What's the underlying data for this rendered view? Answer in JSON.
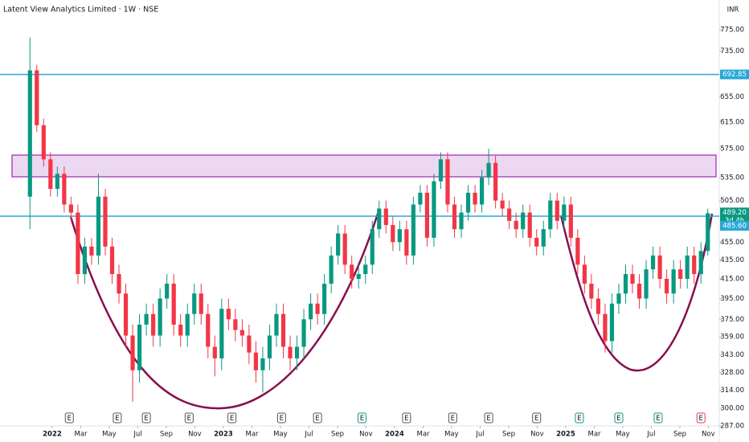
{
  "chart_data": {
    "type": "candlestick",
    "title": "Latent View Analytics Limited · 1W · NSE",
    "currency": "INR",
    "log_scale": true,
    "grid": false,
    "up_color": "#089981",
    "down_color": "#f23645",
    "x": [
      2021.87,
      2021.91,
      2021.95,
      2021.99,
      2022.03,
      2022.07,
      2022.11,
      2022.15,
      2022.19,
      2022.23,
      2022.27,
      2022.31,
      2022.35,
      2022.39,
      2022.43,
      2022.47,
      2022.51,
      2022.55,
      2022.59,
      2022.63,
      2022.67,
      2022.71,
      2022.75,
      2022.79,
      2022.83,
      2022.87,
      2022.91,
      2022.95,
      2022.99,
      2023.03,
      2023.07,
      2023.11,
      2023.15,
      2023.19,
      2023.23,
      2023.27,
      2023.31,
      2023.35,
      2023.39,
      2023.43,
      2023.47,
      2023.51,
      2023.55,
      2023.59,
      2023.63,
      2023.67,
      2023.71,
      2023.75,
      2023.79,
      2023.83,
      2023.87,
      2023.91,
      2023.95,
      2023.99,
      2024.03,
      2024.07,
      2024.11,
      2024.15,
      2024.19,
      2024.23,
      2024.27,
      2024.31,
      2024.35,
      2024.39,
      2024.43,
      2024.47,
      2024.51,
      2024.55,
      2024.59,
      2024.63,
      2024.67,
      2024.71,
      2024.75,
      2024.79,
      2024.83,
      2024.87,
      2024.91,
      2024.95,
      2024.99,
      2025.03,
      2025.07,
      2025.11,
      2025.15,
      2025.19,
      2025.23,
      2025.27,
      2025.31,
      2025.35,
      2025.39,
      2025.43,
      2025.47,
      2025.51,
      2025.55,
      2025.59,
      2025.63,
      2025.67,
      2025.71,
      2025.75,
      2025.79,
      2025.83
    ],
    "open": [
      510,
      700,
      610,
      560,
      520,
      540,
      500,
      490,
      420,
      450,
      440,
      510,
      450,
      420,
      400,
      360,
      330,
      370,
      380,
      360,
      395,
      410,
      370,
      360,
      380,
      400,
      380,
      350,
      340,
      385,
      375,
      365,
      360,
      345,
      330,
      340,
      360,
      380,
      350,
      340,
      350,
      375,
      390,
      380,
      410,
      440,
      465,
      430,
      415,
      420,
      430,
      470,
      495,
      475,
      455,
      470,
      440,
      500,
      515,
      460,
      530,
      560,
      500,
      470,
      490,
      515,
      500,
      535,
      555,
      505,
      495,
      480,
      470,
      490,
      460,
      450,
      470,
      505,
      480,
      500,
      460,
      430,
      410,
      395,
      380,
      355,
      390,
      400,
      420,
      410,
      395,
      425,
      440,
      415,
      400,
      425,
      415,
      440,
      420,
      445
    ],
    "high": [
      760,
      710,
      620,
      570,
      550,
      550,
      510,
      500,
      460,
      460,
      540,
      520,
      460,
      430,
      410,
      370,
      380,
      390,
      390,
      405,
      420,
      420,
      380,
      390,
      410,
      410,
      390,
      360,
      395,
      395,
      385,
      375,
      370,
      355,
      350,
      370,
      390,
      390,
      360,
      360,
      385,
      400,
      400,
      420,
      450,
      475,
      475,
      440,
      430,
      440,
      480,
      505,
      505,
      485,
      480,
      480,
      510,
      525,
      525,
      540,
      570,
      570,
      510,
      500,
      525,
      525,
      545,
      575,
      565,
      515,
      505,
      490,
      500,
      500,
      470,
      480,
      515,
      515,
      510,
      510,
      470,
      440,
      420,
      405,
      390,
      400,
      410,
      430,
      430,
      420,
      435,
      450,
      450,
      425,
      435,
      435,
      450,
      450,
      455,
      495
    ],
    "low": [
      470,
      600,
      550,
      510,
      510,
      490,
      480,
      410,
      410,
      430,
      430,
      440,
      410,
      390,
      350,
      305,
      320,
      360,
      350,
      350,
      385,
      360,
      350,
      350,
      370,
      370,
      340,
      325,
      330,
      365,
      355,
      350,
      335,
      320,
      312,
      330,
      350,
      340,
      330,
      330,
      340,
      365,
      370,
      370,
      400,
      430,
      420,
      405,
      405,
      410,
      420,
      460,
      465,
      445,
      445,
      430,
      430,
      490,
      450,
      450,
      520,
      490,
      460,
      460,
      480,
      490,
      490,
      525,
      495,
      485,
      470,
      460,
      460,
      450,
      440,
      440,
      460,
      470,
      470,
      450,
      420,
      400,
      385,
      370,
      345,
      345,
      380,
      390,
      400,
      385,
      385,
      415,
      405,
      390,
      390,
      405,
      405,
      410,
      410,
      440
    ],
    "close": [
      700,
      610,
      560,
      520,
      540,
      500,
      490,
      420,
      450,
      440,
      510,
      450,
      420,
      400,
      360,
      330,
      370,
      380,
      360,
      395,
      410,
      370,
      360,
      380,
      400,
      380,
      350,
      340,
      385,
      375,
      365,
      360,
      345,
      330,
      340,
      360,
      380,
      350,
      340,
      350,
      375,
      390,
      380,
      410,
      440,
      465,
      430,
      415,
      420,
      430,
      470,
      495,
      475,
      455,
      470,
      440,
      500,
      515,
      460,
      530,
      560,
      500,
      470,
      490,
      515,
      500,
      535,
      555,
      505,
      495,
      480,
      470,
      490,
      460,
      450,
      470,
      505,
      480,
      500,
      460,
      430,
      410,
      395,
      380,
      355,
      390,
      400,
      420,
      410,
      395,
      425,
      440,
      415,
      400,
      425,
      415,
      440,
      420,
      445,
      489.2
    ],
    "last_close_label": "489.20",
    "countdown": "3d 4h",
    "xlim": [
      2021.695,
      2025.897
    ],
    "ylim": [
      287,
      835
    ],
    "xticks": [
      2022,
      {
        "value": 2022.167,
        "label": "Mar"
      },
      {
        "value": 2022.333,
        "label": "May"
      },
      {
        "value": 2022.5,
        "label": "Jul"
      },
      {
        "value": 2022.667,
        "label": "Sep"
      },
      {
        "value": 2022.833,
        "label": "Nov"
      },
      2023,
      {
        "value": 2023.167,
        "label": "Mar"
      },
      {
        "value": 2023.333,
        "label": "May"
      },
      {
        "value": 2023.5,
        "label": "Jul"
      },
      {
        "value": 2023.667,
        "label": "Sep"
      },
      {
        "value": 2023.833,
        "label": "Nov"
      },
      2024,
      {
        "value": 2024.167,
        "label": "Mar"
      },
      {
        "value": 2024.333,
        "label": "May"
      },
      {
        "value": 2024.5,
        "label": "Jul"
      },
      {
        "value": 2024.667,
        "label": "Sep"
      },
      {
        "value": 2024.833,
        "label": "Nov"
      },
      2025,
      {
        "value": 2025.167,
        "label": "Mar"
      },
      {
        "value": 2025.333,
        "label": "May"
      },
      {
        "value": 2025.5,
        "label": "Jul"
      },
      {
        "value": 2025.667,
        "label": "Sep"
      },
      {
        "value": 2025.833,
        "label": "Nov"
      }
    ],
    "yticks": [
      {
        "value": 775,
        "label": "775.00"
      },
      {
        "value": 735,
        "label": "735.00"
      },
      {
        "value": 655,
        "label": "655.00"
      },
      {
        "value": 615,
        "label": "615.00"
      },
      {
        "value": 575,
        "label": "575.00"
      },
      {
        "value": 535,
        "label": "535.00"
      },
      {
        "value": 505,
        "label": "505.00"
      },
      {
        "value": 455,
        "label": "455.00"
      },
      {
        "value": 435,
        "label": "435.00"
      },
      {
        "value": 415,
        "label": "415.00"
      },
      {
        "value": 395,
        "label": "395.00"
      },
      {
        "value": 375,
        "label": "375.00"
      },
      {
        "value": 359,
        "label": "359.00"
      },
      {
        "value": 343,
        "label": "343.00"
      },
      {
        "value": 328,
        "label": "328.00"
      },
      {
        "value": 314,
        "label": "314.00"
      },
      {
        "value": 300,
        "label": "300.00"
      },
      {
        "value": 287,
        "label": "287.00"
      }
    ],
    "levels": [
      {
        "value": 692.85,
        "label": "692.85",
        "color": "#29a8d8"
      },
      {
        "value": 485.6,
        "label": "485.60",
        "color": "#29a8d8"
      }
    ],
    "zone": {
      "low": 536,
      "high": 566,
      "color": "#9c27b0"
    },
    "earnings": {
      "label": "E",
      "x": [
        2022.1,
        2022.38,
        2022.55,
        2022.8,
        2023.05,
        2023.34,
        2023.55,
        2023.81,
        2024.07,
        2024.34,
        2024.55,
        2024.83,
        2025.08,
        2025.31,
        2025.54,
        2025.79
      ],
      "colors": [
        "#555",
        "#555",
        "#555",
        "#555",
        "#555",
        "#555",
        "#555",
        "#089981",
        "#555",
        "#555",
        "#555",
        "#555",
        "#089981",
        "#089981",
        "#089981",
        "#f23645"
      ]
    }
  }
}
